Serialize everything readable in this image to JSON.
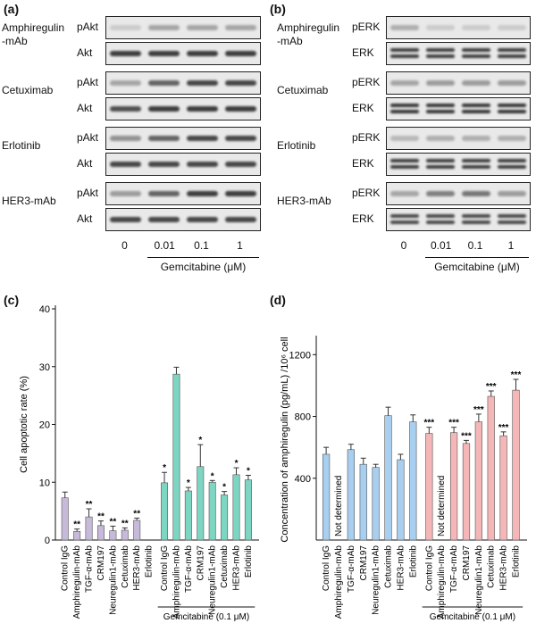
{
  "panels": {
    "a": {
      "letter": "(a)",
      "groups": [
        {
          "drug": "Amphiregulin\n-mAb",
          "rows": [
            "pAkt",
            "Akt"
          ]
        },
        {
          "drug": "Cetuximab",
          "rows": [
            "pAkt",
            "Akt"
          ]
        },
        {
          "drug": "Erlotinib",
          "rows": [
            "pAkt",
            "Akt"
          ]
        },
        {
          "drug": "HER3-mAb",
          "rows": [
            "pAkt",
            "Akt"
          ]
        }
      ],
      "lanes": [
        "0",
        "0.01",
        "0.1",
        "1"
      ],
      "treatment": "Gemcitabine (μM)",
      "intensity": [
        [
          0.15,
          0.35,
          0.35,
          0.35
        ],
        [
          0.9,
          0.9,
          0.9,
          0.9
        ],
        [
          0.35,
          0.7,
          0.85,
          0.85
        ],
        [
          0.8,
          0.9,
          0.9,
          0.9
        ],
        [
          0.45,
          0.7,
          0.85,
          0.85
        ],
        [
          0.85,
          0.85,
          0.85,
          0.85
        ],
        [
          0.4,
          0.7,
          0.9,
          0.9
        ],
        [
          0.85,
          0.85,
          0.85,
          0.85
        ]
      ]
    },
    "b": {
      "letter": "(b)",
      "groups": [
        {
          "drug": "Amphiregulin\n-mAb",
          "rows": [
            "pERK",
            "ERK"
          ]
        },
        {
          "drug": "Cetuximab",
          "rows": [
            "pERK",
            "ERK"
          ]
        },
        {
          "drug": "Erlotinib",
          "rows": [
            "pERK",
            "ERK"
          ]
        },
        {
          "drug": "HER3-mAb",
          "rows": [
            "pERK",
            "ERK"
          ]
        }
      ],
      "lanes": [
        "0",
        "0.01",
        "0.1",
        "1"
      ],
      "treatment": "Gemcitabine (μM)",
      "intensity": [
        [
          0.3,
          0.15,
          0.15,
          0.15
        ],
        [
          0.9,
          0.9,
          0.9,
          0.9
        ],
        [
          0.35,
          0.4,
          0.4,
          0.4
        ],
        [
          0.95,
          0.95,
          0.95,
          0.95
        ],
        [
          0.25,
          0.3,
          0.3,
          0.3
        ],
        [
          0.9,
          0.9,
          0.9,
          0.9
        ],
        [
          0.35,
          0.55,
          0.6,
          0.4
        ],
        [
          0.85,
          0.85,
          0.85,
          0.85
        ]
      ]
    },
    "c": {
      "letter": "(c)"
    },
    "d": {
      "letter": "(d)"
    }
  },
  "chart_data": [
    {
      "type": "bar",
      "panel": "c",
      "ylabel": "Cell apoptotic rate (%)",
      "ylim": [
        0,
        40
      ],
      "yticks": [
        "0",
        "10",
        "20",
        "30",
        "40"
      ],
      "categories": [
        "Control IgG",
        "Amphiregulin-mAb",
        "TGF-α-mAb",
        "CRM197",
        "Neuregulin1-mAb",
        "Cetuximab",
        "HER3-mAb",
        "Erlotinib",
        "Control IgG",
        "Amphiregulin-mAb",
        "TGF-α-mAb",
        "CRM197",
        "Neuregulin1-mAb",
        "Cetuximab",
        "HER3-mAb",
        "Erlotinib"
      ],
      "values": [
        7.3,
        1.5,
        4.0,
        2.5,
        1.6,
        1.7,
        3.4,
        null,
        9.9,
        28.7,
        8.5,
        12.7,
        10.0,
        7.8,
        11.3,
        10.4
      ],
      "errors": [
        1.0,
        0.4,
        1.4,
        0.8,
        0.8,
        0.4,
        0.4,
        null,
        1.8,
        1.2,
        0.6,
        3.8,
        0.3,
        0.6,
        1.2,
        0.8
      ],
      "significance": [
        "",
        "**",
        "**",
        "**",
        "**",
        "**",
        "**",
        "",
        "*",
        "",
        "*",
        "*",
        "*",
        "*",
        "*",
        "*"
      ],
      "group_colors": [
        "#c7b9d9",
        "#7dd6c2"
      ],
      "bracket_label": "Gemcitabine (0.1 μM)"
    },
    {
      "type": "bar",
      "panel": "d",
      "ylabel": "Concentration of amphiregulin (pg/mL) /10⁶ cell",
      "ylim": [
        0,
        1300
      ],
      "yticks": [
        "400",
        "800",
        "1200"
      ],
      "categories": [
        "Control IgG",
        "Amphiregulin-mAb",
        "TGF-α-mAb",
        "CRM197",
        "Neuregulin1-mAb",
        "Cetuximab",
        "HER3-mAb",
        "Erlotinib",
        "Control IgG",
        "Amphiregulin-mAb",
        "TGF-α-mAb",
        "CRM197",
        "Neuregulin1-mAb",
        "Cetuximab",
        "HER3-mAb",
        "Erlotinib"
      ],
      "values": [
        555,
        null,
        585,
        490,
        470,
        805,
        520,
        765,
        690,
        null,
        695,
        625,
        765,
        930,
        675,
        970
      ],
      "errors": [
        45,
        null,
        35,
        40,
        20,
        55,
        35,
        45,
        40,
        null,
        35,
        20,
        50,
        35,
        25,
        70
      ],
      "significance": [
        "",
        "",
        "",
        "",
        "",
        "",
        "",
        "",
        "***",
        "",
        "***",
        "***",
        "***",
        "***",
        "***",
        "***"
      ],
      "annotations": [
        {
          "index": 1,
          "text": "Not determined"
        },
        {
          "index": 9,
          "text": "Not determined"
        }
      ],
      "group_colors": [
        "#a9cff0",
        "#f4b6b6"
      ],
      "bracket_label": "Gemcitabine (0.1 μM)"
    }
  ]
}
